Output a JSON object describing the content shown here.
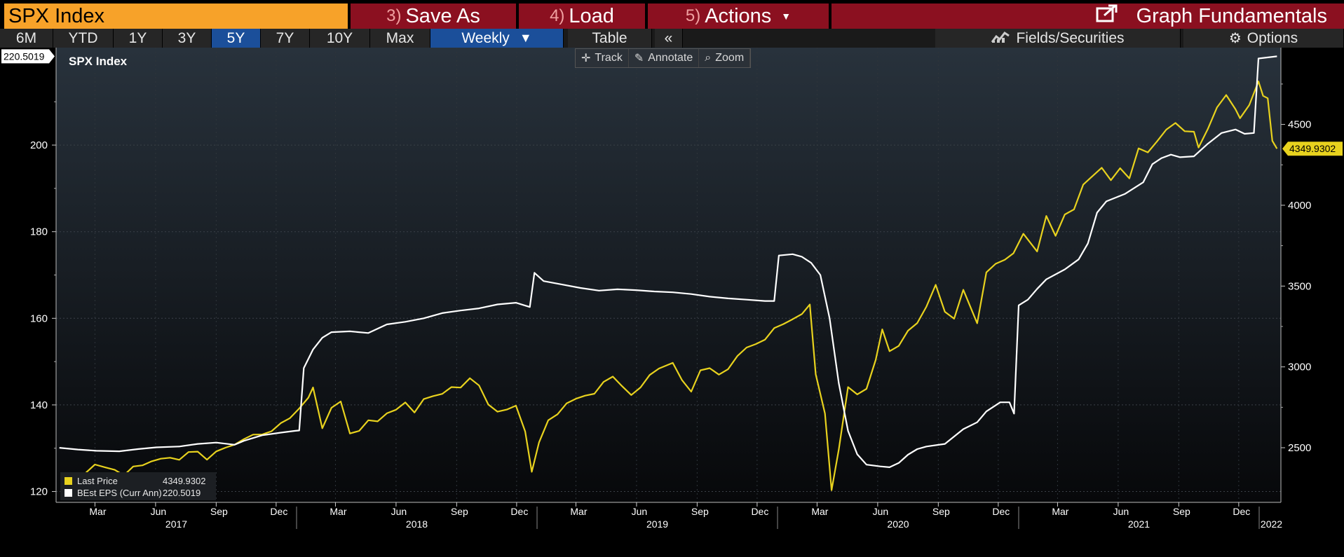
{
  "toolbar": {
    "ticker": "SPX Index",
    "save_as": {
      "num": "3)",
      "label": "Save As"
    },
    "load": {
      "num": "4)",
      "label": "Load"
    },
    "actions": {
      "num": "5)",
      "label": "Actions"
    },
    "graph_fundamentals": "Graph Fundamentals"
  },
  "nav": {
    "ranges": [
      "6M",
      "YTD",
      "1Y",
      "3Y",
      "5Y",
      "7Y",
      "10Y",
      "Max"
    ],
    "active_range": "5Y",
    "frequency": "Weekly",
    "table": "Table",
    "collapse": "«",
    "fields_securities": "Fields/Securities",
    "options": "Options"
  },
  "tools": {
    "track": "Track",
    "annotate": "Annotate",
    "zoom": "Zoom"
  },
  "colors": {
    "price": "#e8d21e",
    "eps": "#ffffff",
    "bg_top": "#27313b",
    "bg_bottom": "#08090b",
    "ticker_bg": "#f7a229",
    "menu_red": "#8b1020"
  },
  "chart_data": {
    "type": "line",
    "title": "SPX Index",
    "x_axis": {
      "month_ticks": [
        "Mar",
        "Jun",
        "Sep",
        "Dec",
        "Mar",
        "Jun",
        "Sep",
        "Dec",
        "Mar",
        "Jun",
        "Sep",
        "Dec",
        "Mar",
        "Jun",
        "Sep",
        "Dec",
        "Mar",
        "Jun",
        "Sep",
        "Dec"
      ],
      "year_labels": [
        "2017",
        "2018",
        "2019",
        "2020",
        "2021",
        "2022"
      ]
    },
    "left_axis": {
      "ticks": [
        120,
        140,
        160,
        180,
        200
      ],
      "ylim": [
        117.5,
        222.5
      ],
      "last_value_label": "220.5019"
    },
    "right_axis": {
      "ticks": [
        2500,
        3000,
        3500,
        4000,
        4500
      ],
      "ylim": [
        2162,
        4975
      ],
      "last_value_label": "4349.9302"
    },
    "series": [
      {
        "name": "Last Price",
        "axis": "right",
        "legend_value": "4349.9302",
        "points": [
          [
            "2017-01-20",
            2270
          ],
          [
            "2017-02-03",
            2297
          ],
          [
            "2017-02-17",
            2352
          ],
          [
            "2017-03-01",
            2396
          ],
          [
            "2017-03-17",
            2378
          ],
          [
            "2017-03-31",
            2363
          ],
          [
            "2017-04-14",
            2329
          ],
          [
            "2017-04-28",
            2384
          ],
          [
            "2017-05-12",
            2391
          ],
          [
            "2017-05-26",
            2416
          ],
          [
            "2017-06-09",
            2432
          ],
          [
            "2017-06-23",
            2438
          ],
          [
            "2017-07-07",
            2425
          ],
          [
            "2017-07-21",
            2473
          ],
          [
            "2017-08-04",
            2476
          ],
          [
            "2017-08-18",
            2426
          ],
          [
            "2017-09-01",
            2477
          ],
          [
            "2017-09-15",
            2500
          ],
          [
            "2017-09-29",
            2519
          ],
          [
            "2017-10-13",
            2553
          ],
          [
            "2017-10-27",
            2581
          ],
          [
            "2017-11-10",
            2582
          ],
          [
            "2017-11-24",
            2602
          ],
          [
            "2017-12-08",
            2652
          ],
          [
            "2017-12-22",
            2683
          ],
          [
            "2018-01-05",
            2743
          ],
          [
            "2018-01-19",
            2810
          ],
          [
            "2018-01-26",
            2873
          ],
          [
            "2018-02-09",
            2620
          ],
          [
            "2018-02-23",
            2747
          ],
          [
            "2018-03-09",
            2786
          ],
          [
            "2018-03-23",
            2588
          ],
          [
            "2018-04-06",
            2604
          ],
          [
            "2018-04-20",
            2670
          ],
          [
            "2018-05-04",
            2663
          ],
          [
            "2018-05-18",
            2713
          ],
          [
            "2018-06-01",
            2735
          ],
          [
            "2018-06-15",
            2780
          ],
          [
            "2018-06-29",
            2718
          ],
          [
            "2018-07-13",
            2801
          ],
          [
            "2018-07-27",
            2819
          ],
          [
            "2018-08-10",
            2833
          ],
          [
            "2018-08-24",
            2875
          ],
          [
            "2018-09-07",
            2872
          ],
          [
            "2018-09-21",
            2930
          ],
          [
            "2018-10-05",
            2885
          ],
          [
            "2018-10-19",
            2767
          ],
          [
            "2018-11-02",
            2723
          ],
          [
            "2018-11-16",
            2736
          ],
          [
            "2018-11-30",
            2760
          ],
          [
            "2018-12-14",
            2600
          ],
          [
            "2018-12-24",
            2351
          ],
          [
            "2019-01-04",
            2532
          ],
          [
            "2019-01-18",
            2670
          ],
          [
            "2019-02-01",
            2707
          ],
          [
            "2019-02-15",
            2775
          ],
          [
            "2019-03-01",
            2803
          ],
          [
            "2019-03-15",
            2822
          ],
          [
            "2019-03-29",
            2834
          ],
          [
            "2019-04-12",
            2907
          ],
          [
            "2019-04-26",
            2940
          ],
          [
            "2019-05-10",
            2881
          ],
          [
            "2019-05-24",
            2826
          ],
          [
            "2019-06-07",
            2873
          ],
          [
            "2019-06-21",
            2950
          ],
          [
            "2019-07-05",
            2990
          ],
          [
            "2019-07-26",
            3025
          ],
          [
            "2019-08-09",
            2918
          ],
          [
            "2019-08-23",
            2847
          ],
          [
            "2019-09-06",
            2979
          ],
          [
            "2019-09-20",
            2992
          ],
          [
            "2019-10-04",
            2952
          ],
          [
            "2019-10-18",
            2986
          ],
          [
            "2019-11-01",
            3067
          ],
          [
            "2019-11-15",
            3120
          ],
          [
            "2019-11-29",
            3141
          ],
          [
            "2019-12-13",
            3169
          ],
          [
            "2019-12-27",
            3240
          ],
          [
            "2020-01-10",
            3265
          ],
          [
            "2020-01-24",
            3295
          ],
          [
            "2020-02-07",
            3327
          ],
          [
            "2020-02-19",
            3386
          ],
          [
            "2020-02-28",
            2954
          ],
          [
            "2020-03-13",
            2711
          ],
          [
            "2020-03-23",
            2237
          ],
          [
            "2020-04-03",
            2489
          ],
          [
            "2020-04-17",
            2875
          ],
          [
            "2020-05-01",
            2830
          ],
          [
            "2020-05-15",
            2864
          ],
          [
            "2020-05-29",
            3044
          ],
          [
            "2020-06-08",
            3232
          ],
          [
            "2020-06-19",
            3097
          ],
          [
            "2020-07-03",
            3130
          ],
          [
            "2020-07-17",
            3224
          ],
          [
            "2020-07-31",
            3271
          ],
          [
            "2020-08-14",
            3373
          ],
          [
            "2020-08-28",
            3508
          ],
          [
            "2020-09-11",
            3341
          ],
          [
            "2020-09-25",
            3298
          ],
          [
            "2020-10-09",
            3477
          ],
          [
            "2020-10-30",
            3270
          ],
          [
            "2020-11-13",
            3585
          ],
          [
            "2020-11-27",
            3638
          ],
          [
            "2020-12-11",
            3663
          ],
          [
            "2020-12-24",
            3703
          ],
          [
            "2021-01-08",
            3824
          ],
          [
            "2021-01-29",
            3714
          ],
          [
            "2021-02-12",
            3934
          ],
          [
            "2021-02-26",
            3811
          ],
          [
            "2021-03-12",
            3943
          ],
          [
            "2021-03-26",
            3974
          ],
          [
            "2021-04-09",
            4128
          ],
          [
            "2021-04-23",
            4180
          ],
          [
            "2021-05-07",
            4232
          ],
          [
            "2021-05-21",
            4155
          ],
          [
            "2021-06-04",
            4229
          ],
          [
            "2021-06-18",
            4166
          ],
          [
            "2021-07-02",
            4352
          ],
          [
            "2021-07-16",
            4327
          ],
          [
            "2021-07-30",
            4395
          ],
          [
            "2021-08-13",
            4468
          ],
          [
            "2021-08-27",
            4509
          ],
          [
            "2021-09-10",
            4458
          ],
          [
            "2021-09-24",
            4455
          ],
          [
            "2021-10-01",
            4357
          ],
          [
            "2021-10-15",
            4471
          ],
          [
            "2021-10-29",
            4605
          ],
          [
            "2021-11-12",
            4682
          ],
          [
            "2021-11-26",
            4594
          ],
          [
            "2021-12-03",
            4538
          ],
          [
            "2021-12-17",
            4620
          ],
          [
            "2021-12-31",
            4766
          ],
          [
            "2022-01-07",
            4677
          ],
          [
            "2022-01-14",
            4662
          ],
          [
            "2022-01-21",
            4398
          ],
          [
            "2022-01-28",
            4349.9302
          ]
        ]
      },
      {
        "name": "BEst EPS (Curr Ann)",
        "axis": "left",
        "legend_value": "220.5019",
        "points": [
          [
            "2017-01-06",
            130.1
          ],
          [
            "2017-02-03",
            129.7
          ],
          [
            "2017-03-03",
            129.4
          ],
          [
            "2017-04-07",
            129.3
          ],
          [
            "2017-05-05",
            129.8
          ],
          [
            "2017-06-02",
            130.2
          ],
          [
            "2017-07-07",
            130.4
          ],
          [
            "2017-08-04",
            131.0
          ],
          [
            "2017-09-01",
            131.3
          ],
          [
            "2017-09-29",
            130.8
          ],
          [
            "2017-10-13",
            131.7
          ],
          [
            "2017-11-10",
            133.0
          ],
          [
            "2017-12-08",
            133.6
          ],
          [
            "2017-12-29",
            134.0
          ],
          [
            "2018-01-05",
            134.1
          ],
          [
            "2018-01-12",
            148.5
          ],
          [
            "2018-01-26",
            152.8
          ],
          [
            "2018-02-09",
            155.5
          ],
          [
            "2018-02-23",
            156.8
          ],
          [
            "2018-03-23",
            157.0
          ],
          [
            "2018-04-20",
            156.6
          ],
          [
            "2018-05-04",
            157.6
          ],
          [
            "2018-05-18",
            158.6
          ],
          [
            "2018-06-15",
            159.2
          ],
          [
            "2018-07-13",
            160.0
          ],
          [
            "2018-08-10",
            161.2
          ],
          [
            "2018-09-07",
            161.8
          ],
          [
            "2018-10-05",
            162.3
          ],
          [
            "2018-11-02",
            163.2
          ],
          [
            "2018-11-30",
            163.6
          ],
          [
            "2018-12-21",
            162.6
          ],
          [
            "2018-12-28",
            170.5
          ],
          [
            "2019-01-11",
            168.6
          ],
          [
            "2019-02-08",
            167.8
          ],
          [
            "2019-03-08",
            167.0
          ],
          [
            "2019-04-05",
            166.4
          ],
          [
            "2019-05-03",
            166.7
          ],
          [
            "2019-05-31",
            166.5
          ],
          [
            "2019-06-28",
            166.2
          ],
          [
            "2019-07-26",
            166.0
          ],
          [
            "2019-08-23",
            165.6
          ],
          [
            "2019-09-20",
            165.0
          ],
          [
            "2019-10-18",
            164.6
          ],
          [
            "2019-11-15",
            164.3
          ],
          [
            "2019-12-13",
            164.0
          ],
          [
            "2019-12-27",
            164.0
          ],
          [
            "2020-01-03",
            174.5
          ],
          [
            "2020-01-24",
            174.8
          ],
          [
            "2020-02-07",
            174.2
          ],
          [
            "2020-02-21",
            172.8
          ],
          [
            "2020-03-06",
            170.0
          ],
          [
            "2020-03-20",
            160.0
          ],
          [
            "2020-04-03",
            145.0
          ],
          [
            "2020-04-17",
            134.0
          ],
          [
            "2020-05-01",
            128.6
          ],
          [
            "2020-05-15",
            126.2
          ],
          [
            "2020-06-05",
            125.8
          ],
          [
            "2020-06-19",
            125.6
          ],
          [
            "2020-07-03",
            126.6
          ],
          [
            "2020-07-17",
            128.5
          ],
          [
            "2020-07-31",
            129.8
          ],
          [
            "2020-08-14",
            130.4
          ],
          [
            "2020-09-11",
            131.0
          ],
          [
            "2020-10-09",
            134.4
          ],
          [
            "2020-10-30",
            136.0
          ],
          [
            "2020-11-13",
            138.5
          ],
          [
            "2020-12-04",
            140.6
          ],
          [
            "2020-12-18",
            140.6
          ],
          [
            "2020-12-25",
            138.0
          ],
          [
            "2021-01-01",
            163.0
          ],
          [
            "2021-01-15",
            164.3
          ],
          [
            "2021-01-29",
            166.8
          ],
          [
            "2021-02-12",
            169.0
          ],
          [
            "2021-03-12",
            171.3
          ],
          [
            "2021-04-02",
            173.6
          ],
          [
            "2021-04-16",
            177.3
          ],
          [
            "2021-04-30",
            184.4
          ],
          [
            "2021-05-14",
            187.0
          ],
          [
            "2021-06-11",
            188.7
          ],
          [
            "2021-07-09",
            191.4
          ],
          [
            "2021-07-23",
            195.6
          ],
          [
            "2021-08-06",
            197.0
          ],
          [
            "2021-08-20",
            197.8
          ],
          [
            "2021-09-03",
            197.2
          ],
          [
            "2021-09-24",
            197.4
          ],
          [
            "2021-10-15",
            200.3
          ],
          [
            "2021-11-05",
            202.8
          ],
          [
            "2021-11-26",
            203.6
          ],
          [
            "2021-12-10",
            202.6
          ],
          [
            "2021-12-24",
            202.8
          ],
          [
            "2021-12-31",
            220.0
          ],
          [
            "2022-01-28",
            220.5019
          ]
        ]
      }
    ]
  }
}
